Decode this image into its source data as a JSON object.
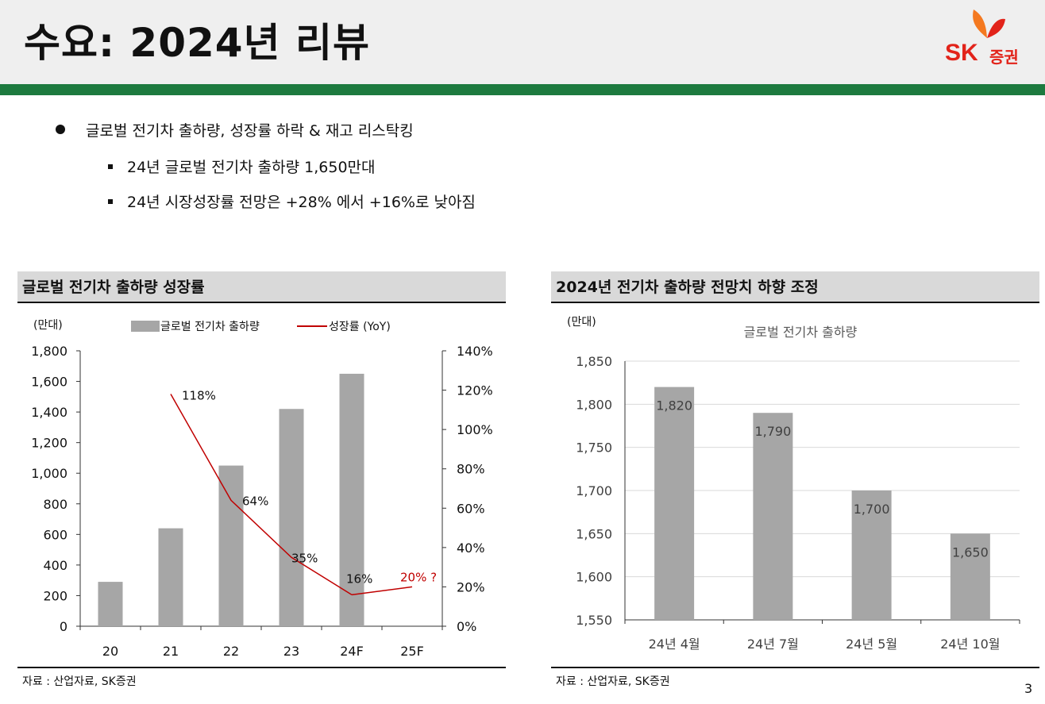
{
  "header": {
    "title": "수요: 2024년 리뷰",
    "logo_text": "SK",
    "logo_sub": "증권"
  },
  "bullets": {
    "main": "글로벌 전기차 출하량, 성장률 하락 & 재고 리스탁킹",
    "sub": [
      "24년 글로벌 전기차 출하량 1,650만대",
      "24년 시장성장률 전망은 +28% 에서 +16%로 낮아짐"
    ]
  },
  "left_panel": {
    "header": "글로벌 전기차 출하량 성장률",
    "source": "자료 : 산업자료, SK증권"
  },
  "right_panel": {
    "header": "2024년 전기차 출하량 전망치 하향 조정",
    "source": "자료 : 산업자료, SK증권"
  },
  "page_number": "3",
  "colors": {
    "bar": "#a6a6a6",
    "line": "#c00000",
    "green": "#1d7a3f",
    "logo_red": "#e2231a",
    "header_bg": "#efefef",
    "panel_header_bg": "#d9d9d9"
  },
  "chart_data": [
    {
      "type": "bar",
      "unit_label": "(만대)",
      "categories": [
        "20",
        "21",
        "22",
        "23",
        "24F",
        "25F"
      ],
      "series": [
        {
          "name": "글로벌 전기차 출하량",
          "type": "bar",
          "values": [
            290,
            640,
            1050,
            1420,
            1650,
            null
          ]
        },
        {
          "name": "성장률 (YoY)",
          "type": "line",
          "axis": "right",
          "values": [
            null,
            118,
            64,
            35,
            16,
            20
          ],
          "labels": [
            null,
            "118%",
            "64%",
            "35%",
            "16%",
            "20% ?"
          ]
        }
      ],
      "ylim": [
        0,
        1800
      ],
      "yticks": [
        "0",
        "200",
        "400",
        "600",
        "800",
        "1,000",
        "1,200",
        "1,400",
        "1,600",
        "1,800"
      ],
      "y2lim": [
        0,
        140
      ],
      "y2ticks": [
        "0%",
        "20%",
        "40%",
        "60%",
        "80%",
        "100%",
        "120%",
        "140%"
      ],
      "legend_position": "top"
    },
    {
      "type": "bar",
      "unit_label": "(만대)",
      "title": "글로벌 전기차 출하량",
      "categories": [
        "24년 4월",
        "24년 7월",
        "24년 5월",
        "24년 10월"
      ],
      "values": [
        1820,
        1790,
        1700,
        1650
      ],
      "value_labels": [
        "1,820",
        "1,790",
        "1,700",
        "1,650"
      ],
      "ylim": [
        1550,
        1850
      ],
      "yticks": [
        "1,550",
        "1,600",
        "1,650",
        "1,700",
        "1,750",
        "1,800",
        "1,850"
      ],
      "grid": true
    }
  ]
}
